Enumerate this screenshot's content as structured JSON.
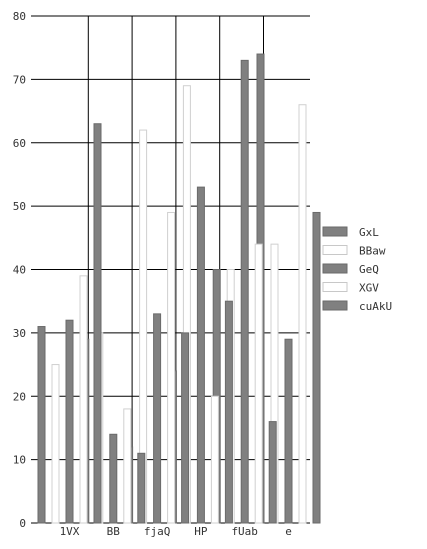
{
  "chart_data": {
    "type": "bar",
    "title": "",
    "xlabel": "",
    "ylabel": "",
    "categories": [
      "1VX",
      "BB",
      "fjaQ",
      "HP",
      "fUab",
      "e"
    ],
    "series": [
      {
        "name": "GxL",
        "values": [
          31,
          29,
          12,
          24,
          40,
          74
        ],
        "color": "#808080"
      },
      {
        "name": "BBaw",
        "values": [
          25,
          30,
          62,
          69,
          40,
          44
        ],
        "color": "#ffffff"
      },
      {
        "name": "GeQ",
        "values": [
          32,
          14,
          33,
          53,
          73,
          29
        ],
        "color": "#808080"
      },
      {
        "name": "XGV",
        "values": [
          39,
          18,
          49,
          20,
          44,
          66
        ],
        "color": "#ffffff"
      },
      {
        "name": "cuAkU",
        "values": [
          63,
          11,
          30,
          35,
          16,
          49
        ],
        "color": "#808080"
      }
    ],
    "ylim": [
      0,
      80
    ],
    "yticks": [
      0,
      10,
      20,
      30,
      40,
      50,
      60,
      70,
      80
    ],
    "grid": true,
    "legend_position": "right"
  }
}
